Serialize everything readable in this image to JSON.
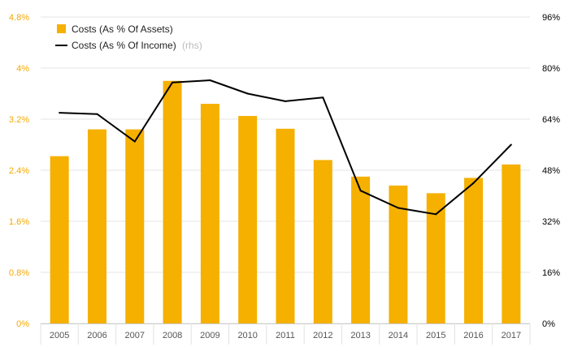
{
  "colors": {
    "bar": "#f5b000",
    "line": "#000000",
    "grid": "#e6e6e6",
    "left_axis_text": "#f5a800",
    "right_axis_text": "#000000",
    "x_axis_text": "#555555",
    "muted_text": "#bbbbbb"
  },
  "chart_data": {
    "type": "bar",
    "title": "",
    "xlabel": "",
    "ylabel": "",
    "categories": [
      "2005",
      "2006",
      "2007",
      "2008",
      "2009",
      "2010",
      "2011",
      "2012",
      "2013",
      "2014",
      "2015",
      "2016",
      "2017"
    ],
    "series": [
      {
        "name": "Costs (As % Of Assets)",
        "type": "bar",
        "axis": "left",
        "values": [
          2.62,
          3.04,
          3.04,
          3.8,
          3.44,
          3.25,
          3.05,
          2.56,
          2.3,
          2.16,
          2.04,
          2.28,
          2.49
        ]
      },
      {
        "name": "Costs (As % Of Income)",
        "name_suffix": "(rhs)",
        "type": "line",
        "axis": "right",
        "values": [
          66,
          65.6,
          57,
          75.5,
          76.2,
          72,
          69.6,
          70.8,
          41.6,
          36.2,
          34.2,
          44,
          56
        ]
      }
    ],
    "y_left": {
      "ylim": [
        0,
        4.8
      ],
      "ticks": [
        0,
        0.8,
        1.6,
        2.4,
        3.2,
        4,
        4.8
      ],
      "tick_labels": [
        "0%",
        "0.8%",
        "1.6%",
        "2.4%",
        "3.2%",
        "4%",
        "4.8%"
      ]
    },
    "y_right": {
      "ylim": [
        0,
        96
      ],
      "ticks": [
        0,
        16,
        32,
        48,
        64,
        80,
        96
      ],
      "tick_labels": [
        "0%",
        "16%",
        "32%",
        "48%",
        "64%",
        "80%",
        "96%"
      ]
    },
    "grid": true,
    "legend_position": "top-left"
  }
}
